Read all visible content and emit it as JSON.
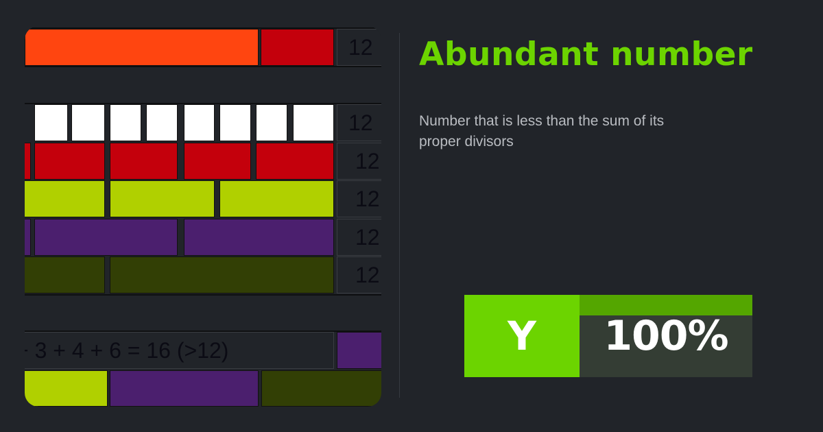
{
  "card": {
    "title": "Abundant number",
    "description": "Number that is less than the sum of its proper divisors",
    "badge": {
      "letter": "Y",
      "percent_label": "100%",
      "percent": 100
    },
    "colors": {
      "accent": "#6cd400",
      "accent_dark": "#54a600",
      "background": "#212429"
    }
  },
  "illustration": {
    "top_row_label": "12",
    "row_labels": [
      "12",
      "12",
      "12",
      "12",
      "12"
    ],
    "formula": "+ 3 + 4 + 6 = 16 (>12)",
    "colors": {
      "orange": "#ff4510",
      "red": "#c4000c",
      "white": "#ffffff",
      "yellow": "#b0d000",
      "purple": "#4b1f6e",
      "olive": "#323f05"
    }
  }
}
